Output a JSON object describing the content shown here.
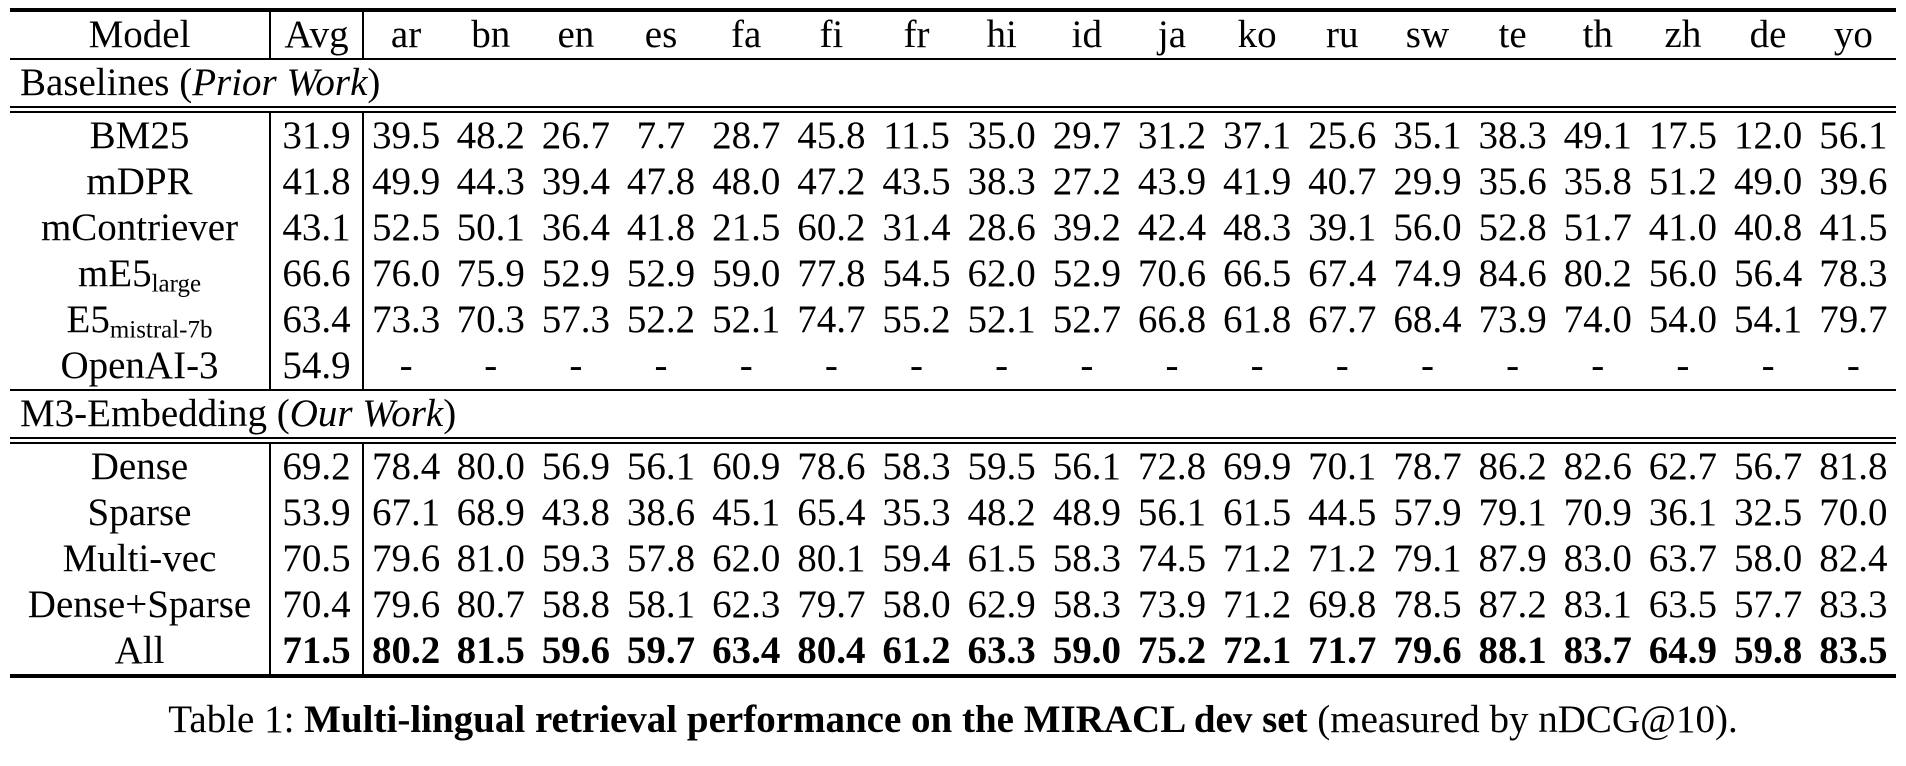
{
  "table": {
    "header": {
      "model": "Model",
      "avg": "Avg",
      "languages": [
        "ar",
        "bn",
        "en",
        "es",
        "fa",
        "fi",
        "fr",
        "hi",
        "id",
        "ja",
        "ko",
        "ru",
        "sw",
        "te",
        "th",
        "zh",
        "de",
        "yo"
      ]
    },
    "sections": [
      {
        "title": {
          "prefix": "Baselines (",
          "italic": "Prior Work",
          "suffix": ")"
        },
        "rows": [
          {
            "model": "BM25",
            "sub": "",
            "bold": false,
            "avg": "31.9",
            "values": [
              "39.5",
              "48.2",
              "26.7",
              "7.7",
              "28.7",
              "45.8",
              "11.5",
              "35.0",
              "29.7",
              "31.2",
              "37.1",
              "25.6",
              "35.1",
              "38.3",
              "49.1",
              "17.5",
              "12.0",
              "56.1"
            ]
          },
          {
            "model": "mDPR",
            "sub": "",
            "bold": false,
            "avg": "41.8",
            "values": [
              "49.9",
              "44.3",
              "39.4",
              "47.8",
              "48.0",
              "47.2",
              "43.5",
              "38.3",
              "27.2",
              "43.9",
              "41.9",
              "40.7",
              "29.9",
              "35.6",
              "35.8",
              "51.2",
              "49.0",
              "39.6"
            ]
          },
          {
            "model": "mContriever",
            "sub": "",
            "bold": false,
            "avg": "43.1",
            "values": [
              "52.5",
              "50.1",
              "36.4",
              "41.8",
              "21.5",
              "60.2",
              "31.4",
              "28.6",
              "39.2",
              "42.4",
              "48.3",
              "39.1",
              "56.0",
              "52.8",
              "51.7",
              "41.0",
              "40.8",
              "41.5"
            ]
          },
          {
            "model": "mE5",
            "sub": "large",
            "bold": false,
            "avg": "66.6",
            "values": [
              "76.0",
              "75.9",
              "52.9",
              "52.9",
              "59.0",
              "77.8",
              "54.5",
              "62.0",
              "52.9",
              "70.6",
              "66.5",
              "67.4",
              "74.9",
              "84.6",
              "80.2",
              "56.0",
              "56.4",
              "78.3"
            ]
          },
          {
            "model": "E5",
            "sub": "mistral-7b",
            "bold": false,
            "avg": "63.4",
            "values": [
              "73.3",
              "70.3",
              "57.3",
              "52.2",
              "52.1",
              "74.7",
              "55.2",
              "52.1",
              "52.7",
              "66.8",
              "61.8",
              "67.7",
              "68.4",
              "73.9",
              "74.0",
              "54.0",
              "54.1",
              "79.7"
            ]
          },
          {
            "model": "OpenAI-3",
            "sub": "",
            "bold": false,
            "avg": "54.9",
            "values": [
              "-",
              "-",
              "-",
              "-",
              "-",
              "-",
              "-",
              "-",
              "-",
              "-",
              "-",
              "-",
              "-",
              "-",
              "-",
              "-",
              "-",
              "-"
            ]
          }
        ]
      },
      {
        "title": {
          "prefix": "M3-Embedding (",
          "italic": "Our Work",
          "suffix": ")"
        },
        "rows": [
          {
            "model": "Dense",
            "sub": "",
            "bold": false,
            "avg": "69.2",
            "values": [
              "78.4",
              "80.0",
              "56.9",
              "56.1",
              "60.9",
              "78.6",
              "58.3",
              "59.5",
              "56.1",
              "72.8",
              "69.9",
              "70.1",
              "78.7",
              "86.2",
              "82.6",
              "62.7",
              "56.7",
              "81.8"
            ]
          },
          {
            "model": "Sparse",
            "sub": "",
            "bold": false,
            "avg": "53.9",
            "values": [
              "67.1",
              "68.9",
              "43.8",
              "38.6",
              "45.1",
              "65.4",
              "35.3",
              "48.2",
              "48.9",
              "56.1",
              "61.5",
              "44.5",
              "57.9",
              "79.1",
              "70.9",
              "36.1",
              "32.5",
              "70.0"
            ]
          },
          {
            "model": "Multi-vec",
            "sub": "",
            "bold": false,
            "avg": "70.5",
            "values": [
              "79.6",
              "81.0",
              "59.3",
              "57.8",
              "62.0",
              "80.1",
              "59.4",
              "61.5",
              "58.3",
              "74.5",
              "71.2",
              "71.2",
              "79.1",
              "87.9",
              "83.0",
              "63.7",
              "58.0",
              "82.4"
            ]
          },
          {
            "model": "Dense+Sparse",
            "sub": "",
            "bold": false,
            "avg": "70.4",
            "values": [
              "79.6",
              "80.7",
              "58.8",
              "58.1",
              "62.3",
              "79.7",
              "58.0",
              "62.9",
              "58.3",
              "73.9",
              "71.2",
              "69.8",
              "78.5",
              "87.2",
              "83.1",
              "63.5",
              "57.7",
              "83.3"
            ]
          },
          {
            "model": "All",
            "sub": "",
            "bold": true,
            "avg": "71.5",
            "values": [
              "80.2",
              "81.5",
              "59.6",
              "59.7",
              "63.4",
              "80.4",
              "61.2",
              "63.3",
              "59.0",
              "75.2",
              "72.1",
              "71.7",
              "79.6",
              "88.1",
              "83.7",
              "64.9",
              "59.8",
              "83.5"
            ]
          }
        ]
      }
    ]
  },
  "caption": {
    "prefix": "Table 1: ",
    "bold_text": "Multi-lingual retrieval performance on the MIRACL dev set",
    "suffix": " (measured by nDCG@10)."
  }
}
